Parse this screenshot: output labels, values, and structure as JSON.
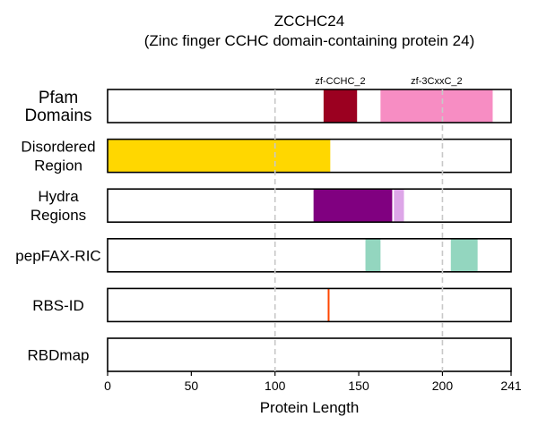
{
  "chart_data": {
    "type": "track",
    "title": "ZCCHC24",
    "subtitle": "(Zinc finger CCHC domain-containing protein 24)",
    "xlabel": "Protein Length",
    "xlim": [
      0,
      241
    ],
    "xticks": [
      0,
      50,
      100,
      150,
      200,
      241
    ],
    "reference_lines": [
      100,
      200
    ],
    "tracks": [
      {
        "label": [
          "Pfam",
          "Domains"
        ],
        "segments": [
          {
            "start": 129,
            "end": 149,
            "color": "#9b0020",
            "label": "zf-CCHC_2"
          },
          {
            "start": 163,
            "end": 230,
            "color": "#f78dc3",
            "label": "zf-3CxxC_2"
          }
        ]
      },
      {
        "label": [
          "Disordered",
          "Region"
        ],
        "segments": [
          {
            "start": 0,
            "end": 133,
            "color": "#ffd700"
          }
        ]
      },
      {
        "label": [
          "Hydra",
          "Regions"
        ],
        "segments": [
          {
            "start": 123,
            "end": 170,
            "color": "#800080"
          },
          {
            "start": 171,
            "end": 177,
            "color": "#dda6e8"
          }
        ]
      },
      {
        "label": [
          "pepFAX-RIC"
        ],
        "segments": [
          {
            "start": 154,
            "end": 163,
            "color": "#93d6bf"
          },
          {
            "start": 205,
            "end": 221,
            "color": "#93d6bf"
          }
        ]
      },
      {
        "label": [
          "RBS-ID"
        ],
        "segments": [
          {
            "start": 132,
            "end": 132,
            "color": "#ff4500"
          }
        ]
      },
      {
        "label": [
          "RBDmap"
        ],
        "segments": []
      }
    ]
  }
}
